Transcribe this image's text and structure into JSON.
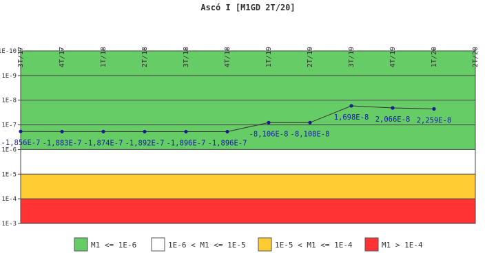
{
  "chart_data": {
    "type": "line",
    "title": "Ascó I [M1GD 2T/20]",
    "categories": [
      "3T/17",
      "4T/17",
      "1T/18",
      "2T/18",
      "3T/18",
      "4T/18",
      "1T/19",
      "2T/19",
      "3T/19",
      "4T/19",
      "1T/20",
      "2T/20"
    ],
    "y_scale": "log",
    "y_ticks": [
      "1E-10",
      "1E-9",
      "1E-8",
      "1E-7",
      "1E-6",
      "1E-5",
      "1E-4",
      "1E-3"
    ],
    "y_tick_exponents": [
      -10,
      -9,
      -8,
      -7,
      -6,
      -5,
      -4,
      -3
    ],
    "series": [
      {
        "values": [
          -1.856e-07,
          -1.883e-07,
          -1.874e-07,
          -1.892e-07,
          -1.896e-07,
          -1.896e-07,
          -8.106e-08,
          -8.108e-08,
          1.698e-08,
          2.066e-08,
          2.259e-08,
          null
        ],
        "labels": [
          "-1,856E-7",
          "-1,883E-7",
          "-1,874E-7",
          "-1,892E-7",
          "-1,896E-7",
          "-1,896E-7",
          "-8,106E-8",
          "-8,108E-8",
          "1,698E-8",
          "2,066E-8",
          "2,259E-8",
          ""
        ],
        "color": "#1a1a8c"
      }
    ],
    "bands": [
      {
        "label": "M1 <= 1E-6",
        "from_exp": -10,
        "to_exp": -6,
        "color": "#66cc66"
      },
      {
        "label": "1E-6 < M1 <= 1E-5",
        "from_exp": -6,
        "to_exp": -5,
        "color": "#ffffff"
      },
      {
        "label": "1E-5 < M1 <= 1E-4",
        "from_exp": -5,
        "to_exp": -4,
        "color": "#ffcc33"
      },
      {
        "label": "M1 > 1E-4",
        "from_exp": -4,
        "to_exp": -3,
        "color": "#ff3333"
      }
    ],
    "legend_position": "bottom"
  }
}
